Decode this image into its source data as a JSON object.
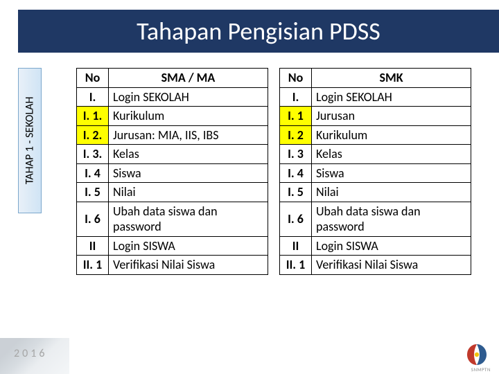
{
  "header": {
    "title": "Tahapan Pengisian PDSS"
  },
  "sideTab": {
    "label": "TAHAP 1 - SEKOLAH"
  },
  "tableLeft": {
    "headers": {
      "no": "No",
      "desc": "SMA / MA"
    },
    "rows": [
      {
        "no": "I.",
        "desc": "Login SEKOLAH",
        "hl_no": false,
        "hl_desc": true
      },
      {
        "no": "I. 1.",
        "desc": "Kurikulum",
        "hl_no": true,
        "hl_desc": true
      },
      {
        "no": "I. 2.",
        "desc": "Jurusan: MIA, IIS, IBS",
        "hl_no": true,
        "hl_desc": true
      },
      {
        "no": "I. 3.",
        "desc": "Kelas",
        "hl_no": false,
        "hl_desc": false
      },
      {
        "no": "I. 4",
        "desc": "Siswa",
        "hl_no": false,
        "hl_desc": false
      },
      {
        "no": "I. 5",
        "desc": "Nilai",
        "hl_no": false,
        "hl_desc": false
      },
      {
        "no": "I. 6",
        "desc": "Ubah data siswa dan password",
        "hl_no": false,
        "hl_desc": false
      },
      {
        "no": "II",
        "desc": "Login SISWA",
        "hl_no": false,
        "hl_desc": false
      },
      {
        "no": "II. 1",
        "desc": "Verifikasi Nilai Siswa",
        "hl_no": false,
        "hl_desc": false
      }
    ]
  },
  "tableRight": {
    "headers": {
      "no": "No",
      "desc": "SMK"
    },
    "rows": [
      {
        "no": "I.",
        "desc": "Login SEKOLAH",
        "hl_no": false,
        "hl_desc": false
      },
      {
        "no": "I. 1",
        "desc": "Jurusan",
        "hl_no": true,
        "hl_desc": true
      },
      {
        "no": "I. 2",
        "desc": "Kurikulum",
        "hl_no": true,
        "hl_desc": true
      },
      {
        "no": "I. 3",
        "desc": "Kelas",
        "hl_no": false,
        "hl_desc": false
      },
      {
        "no": "I. 4",
        "desc": "Siswa",
        "hl_no": false,
        "hl_desc": false
      },
      {
        "no": "I. 5",
        "desc": "Nilai",
        "hl_no": false,
        "hl_desc": false
      },
      {
        "no": "I. 6",
        "desc": "Ubah data siswa dan password",
        "hl_no": false,
        "hl_desc": false
      },
      {
        "no": "II",
        "desc": "Login SISWA",
        "hl_no": false,
        "hl_desc": false
      },
      {
        "no": "II. 1",
        "desc": "Verifikasi Nilai Siswa",
        "hl_no": false,
        "hl_desc": false
      }
    ]
  },
  "footer": {
    "year": "2016",
    "logoLabel": "SNMPTN"
  },
  "colors": {
    "banner": "#1f3864",
    "highlight": "#ffff00",
    "border": "#000000",
    "tabBorder": "#7ba7cc"
  }
}
